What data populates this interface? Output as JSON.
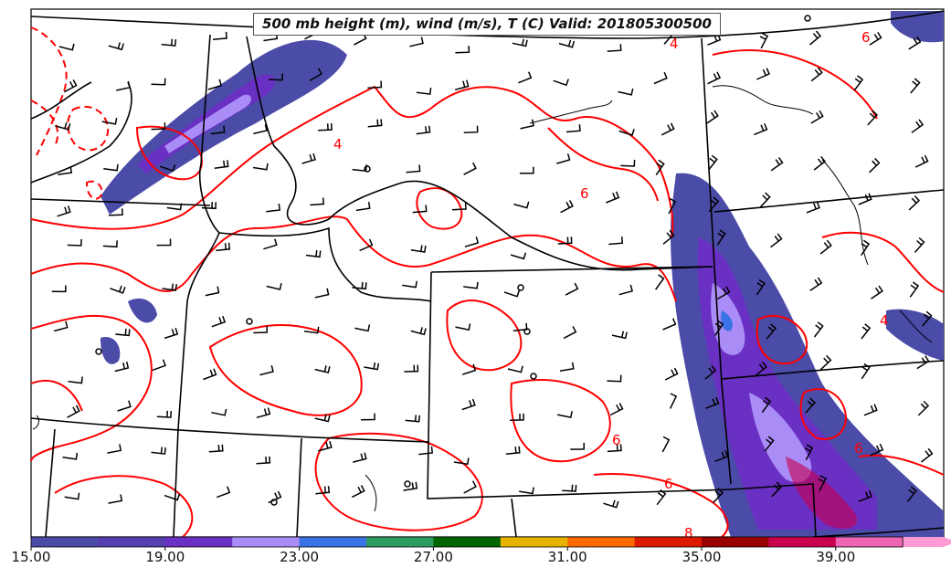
{
  "map": {
    "title": "500 mb height (m), wind (m/s), T (C) Valid: 201805300500",
    "contour_labels": [
      "4",
      "4",
      "4",
      "6",
      "6",
      "6",
      "6",
      "6",
      "8"
    ],
    "contour_color": "#ff0000",
    "boundary_color": "#000000"
  },
  "colorbar": {
    "colors": [
      "#4b4ba8",
      "#553fb0",
      "#6a2fc3",
      "#a98cf5",
      "#3a73e6",
      "#2e9b63",
      "#006400",
      "#e6b400",
      "#ff6a00",
      "#dd1a00",
      "#990000",
      "#c8004e",
      "#f064b4",
      "#ff9ad2"
    ],
    "tick_labels": [
      "15.00",
      "19.00",
      "23.00",
      "27.00",
      "31.00",
      "35.00",
      "39.00"
    ]
  }
}
